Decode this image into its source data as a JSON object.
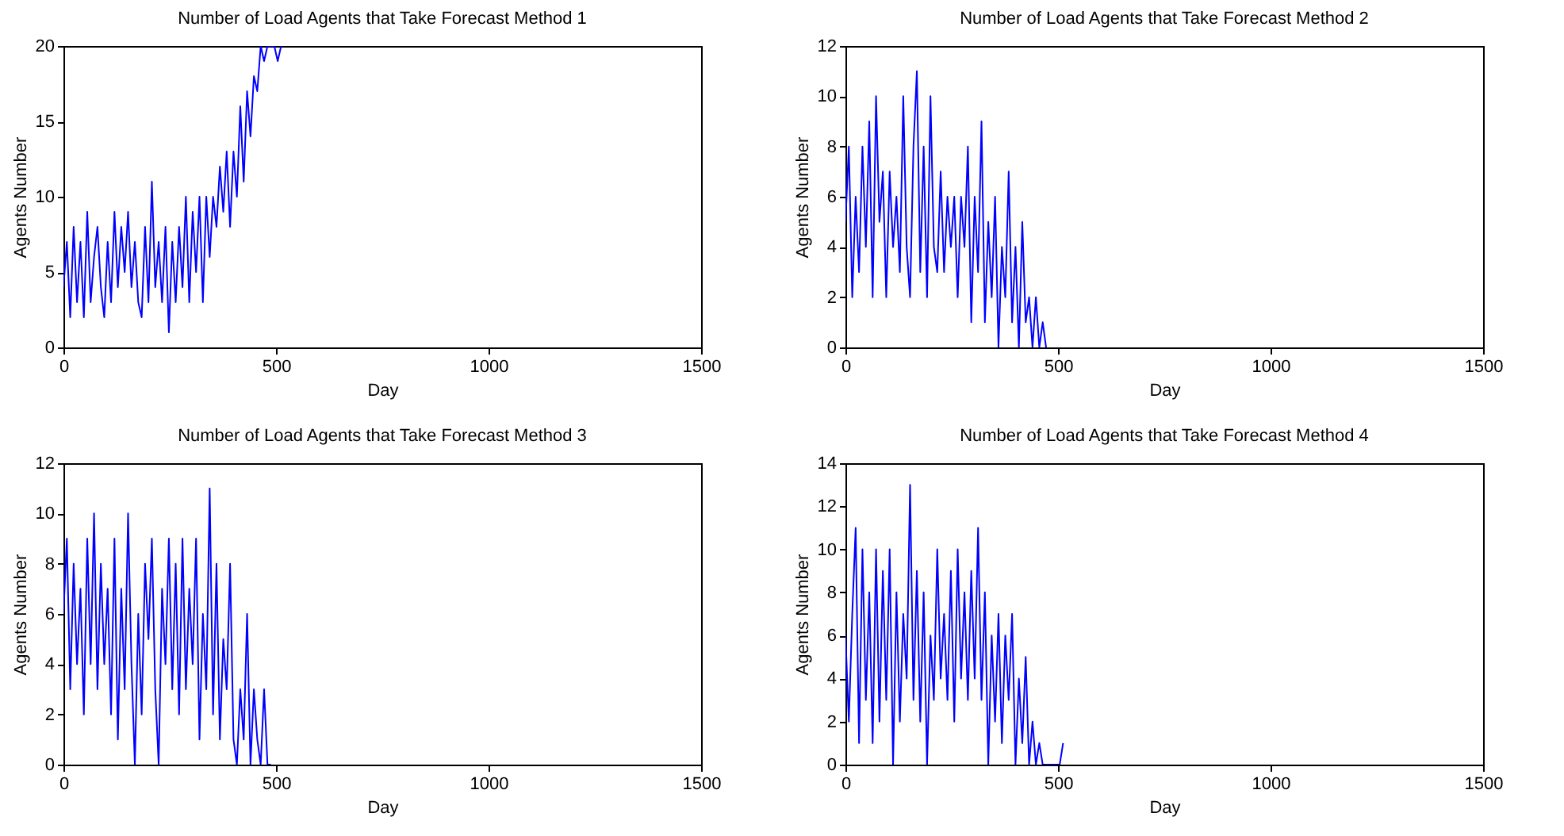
{
  "chart_data": [
    {
      "type": "line",
      "title": "Number of Load Agents that Take Forecast Method 1",
      "xlabel": "Day",
      "ylabel": "Agents Number",
      "xlim": [
        0,
        1500
      ],
      "xticks": [
        0,
        500,
        1000,
        1500
      ],
      "ylim": [
        0,
        20
      ],
      "yticks": [
        0,
        5,
        10,
        15,
        20
      ],
      "x": [
        0,
        8,
        16,
        24,
        32,
        40,
        48,
        56,
        64,
        72,
        80,
        88,
        96,
        104,
        112,
        120,
        128,
        136,
        144,
        152,
        160,
        168,
        176,
        184,
        192,
        200,
        208,
        216,
        224,
        232,
        240,
        248,
        256,
        264,
        272,
        280,
        288,
        296,
        304,
        312,
        320,
        328,
        336,
        344,
        352,
        360,
        368,
        376,
        384,
        392,
        400,
        408,
        416,
        424,
        432,
        440,
        448,
        456,
        464,
        472,
        480,
        488,
        496,
        504,
        512
      ],
      "series": [
        {
          "color": "#0000ff",
          "values": [
            4,
            7,
            2,
            8,
            3,
            7,
            2,
            9,
            3,
            6,
            8,
            4,
            2,
            7,
            3,
            9,
            4,
            8,
            5,
            9,
            4,
            7,
            3,
            2,
            8,
            3,
            11,
            4,
            7,
            3,
            8,
            1,
            7,
            3,
            8,
            4,
            10,
            3,
            9,
            5,
            10,
            3,
            10,
            6,
            10,
            8,
            12,
            9,
            13,
            8,
            13,
            10,
            16,
            11,
            17,
            14,
            18,
            17,
            20,
            19,
            20,
            20,
            20,
            19,
            20
          ]
        }
      ]
    },
    {
      "type": "line",
      "title": "Number of Load Agents that Take Forecast Method 2",
      "xlabel": "Day",
      "ylabel": "Agents Number",
      "xlim": [
        0,
        1500
      ],
      "xticks": [
        0,
        500,
        1000,
        1500
      ],
      "ylim": [
        0,
        12
      ],
      "yticks": [
        0,
        2,
        4,
        6,
        8,
        10,
        12
      ],
      "x": [
        0,
        8,
        16,
        24,
        32,
        40,
        48,
        56,
        64,
        72,
        80,
        88,
        96,
        104,
        112,
        120,
        128,
        136,
        144,
        152,
        160,
        168,
        176,
        184,
        192,
        200,
        208,
        216,
        224,
        232,
        240,
        248,
        256,
        264,
        272,
        280,
        288,
        296,
        304,
        312,
        320,
        328,
        336,
        344,
        352,
        360,
        368,
        376,
        384,
        392,
        400,
        408,
        416,
        424,
        432,
        440,
        448,
        456,
        464,
        472
      ],
      "series": [
        {
          "color": "#0000ff",
          "values": [
            5,
            8,
            2,
            6,
            3,
            8,
            4,
            9,
            2,
            10,
            5,
            7,
            2,
            7,
            4,
            6,
            3,
            10,
            4,
            2,
            8,
            11,
            3,
            8,
            2,
            10,
            4,
            3,
            7,
            3,
            6,
            4,
            6,
            2,
            6,
            4,
            8,
            1,
            6,
            3,
            9,
            1,
            5,
            2,
            6,
            0,
            4,
            2,
            7,
            1,
            4,
            0,
            5,
            1,
            2,
            0,
            2,
            0,
            1,
            0
          ]
        }
      ]
    },
    {
      "type": "line",
      "title": "Number of Load Agents that Take Forecast Method 3",
      "xlabel": "Day",
      "ylabel": "Agents Number",
      "xlim": [
        0,
        1500
      ],
      "xticks": [
        0,
        500,
        1000,
        1500
      ],
      "ylim": [
        0,
        12
      ],
      "yticks": [
        0,
        2,
        4,
        6,
        8,
        10,
        12
      ],
      "x": [
        0,
        8,
        16,
        24,
        32,
        40,
        48,
        56,
        64,
        72,
        80,
        88,
        96,
        104,
        112,
        120,
        128,
        136,
        144,
        152,
        160,
        168,
        176,
        184,
        192,
        200,
        208,
        216,
        224,
        232,
        240,
        248,
        256,
        264,
        272,
        280,
        288,
        296,
        304,
        312,
        320,
        328,
        336,
        344,
        352,
        360,
        368,
        376,
        384,
        392,
        400,
        408,
        416,
        424,
        432,
        440,
        448,
        456,
        464,
        472,
        480,
        488
      ],
      "series": [
        {
          "color": "#0000ff",
          "values": [
            6,
            9,
            3,
            8,
            4,
            7,
            2,
            9,
            4,
            10,
            3,
            8,
            4,
            7,
            2,
            9,
            1,
            7,
            3,
            10,
            4,
            0,
            6,
            2,
            8,
            5,
            9,
            3,
            0,
            7,
            4,
            9,
            3,
            8,
            2,
            9,
            3,
            7,
            4,
            9,
            1,
            6,
            3,
            11,
            2,
            8,
            1,
            5,
            3,
            8,
            1,
            0,
            3,
            1,
            6,
            0,
            3,
            1,
            0,
            3,
            0,
            0
          ]
        }
      ]
    },
    {
      "type": "line",
      "title": "Number of Load Agents that Take Forecast Method 4",
      "xlabel": "Day",
      "ylabel": "Agents Number",
      "xlim": [
        0,
        1500
      ],
      "xticks": [
        0,
        500,
        1000,
        1500
      ],
      "ylim": [
        0,
        14
      ],
      "yticks": [
        0,
        2,
        4,
        6,
        8,
        10,
        12,
        14
      ],
      "x": [
        0,
        8,
        16,
        24,
        32,
        40,
        48,
        56,
        64,
        72,
        80,
        88,
        96,
        104,
        112,
        120,
        128,
        136,
        144,
        152,
        160,
        168,
        176,
        184,
        192,
        200,
        208,
        216,
        224,
        232,
        240,
        248,
        256,
        264,
        272,
        280,
        288,
        296,
        304,
        312,
        320,
        328,
        336,
        344,
        352,
        360,
        368,
        376,
        384,
        392,
        400,
        408,
        416,
        424,
        432,
        440,
        448,
        456,
        464,
        472,
        480,
        488,
        496,
        504,
        512
      ],
      "series": [
        {
          "color": "#0000ff",
          "values": [
            6,
            2,
            7,
            11,
            1,
            10,
            3,
            8,
            1,
            10,
            2,
            9,
            3,
            10,
            0,
            8,
            2,
            7,
            4,
            13,
            3,
            9,
            2,
            8,
            0,
            6,
            3,
            10,
            4,
            7,
            3,
            9,
            2,
            10,
            4,
            8,
            3,
            9,
            4,
            11,
            3,
            8,
            0,
            6,
            2,
            7,
            1,
            6,
            3,
            7,
            0,
            4,
            1,
            5,
            0,
            2,
            0,
            1,
            0,
            0,
            0,
            0,
            0,
            0,
            1
          ]
        }
      ]
    }
  ]
}
